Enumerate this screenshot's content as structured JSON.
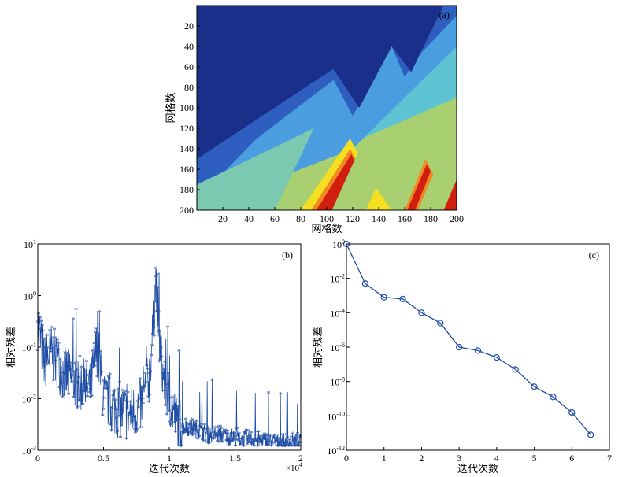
{
  "chart_data": [
    {
      "type": "heatmap",
      "panel_label": "(a)",
      "xlabel": "网格数",
      "ylabel": "网格数",
      "xlim": [
        0,
        200
      ],
      "ylim": [
        200,
        0
      ],
      "x_ticks": [
        20,
        40,
        60,
        80,
        100,
        120,
        140,
        160,
        180,
        200
      ],
      "y_ticks": [
        20,
        40,
        60,
        80,
        100,
        120,
        140,
        160,
        180,
        200
      ],
      "colormap": "jet",
      "grid": false,
      "colors": {
        "dark_blue": "#1a2f8a",
        "mid_blue": "#2e5fc0",
        "light_blue": "#4a9ee0",
        "cyan": "#5ec4d4",
        "teal": "#7cc8b0",
        "green": "#a8cf70",
        "yellow": "#f4e020",
        "orange": "#f08a20",
        "red": "#d01e10"
      }
    },
    {
      "type": "scatter",
      "panel_label": "(b)",
      "xlabel": "迭代次数",
      "ylabel": "相对残差",
      "x_multiplier_label": "×10",
      "x_multiplier_exp": "4",
      "xlim": [
        0,
        2
      ],
      "ylim_log10": [
        -3,
        1
      ],
      "y_scale": "log",
      "x_ticks": [
        "0",
        "0.5",
        "1",
        "1.5",
        "2"
      ],
      "y_tick_exponents": [
        "1",
        "0",
        "-1",
        "-2",
        "-3"
      ],
      "y_tick_base": "10",
      "marker": "*",
      "color": "#1f4da6",
      "grid": false,
      "x": [
        0,
        0.05,
        0.1,
        0.2,
        0.3,
        0.4,
        0.45,
        0.5,
        0.6,
        0.7,
        0.8,
        0.85,
        0.88,
        0.9,
        0.92,
        0.95,
        1.0,
        1.05,
        1.1,
        1.2,
        1.3,
        1.4,
        1.5,
        1.6,
        1.7,
        1.8,
        1.9,
        2.0
      ],
      "y": [
        0.3,
        0.05,
        0.08,
        0.03,
        0.02,
        0.015,
        0.1,
        0.01,
        0.006,
        0.005,
        0.008,
        0.03,
        0.3,
        2.3,
        0.2,
        0.03,
        0.01,
        0.004,
        0.003,
        0.0025,
        0.002,
        0.002,
        0.0018,
        0.0016,
        0.0015,
        0.0014,
        0.0014,
        0.0014
      ]
    },
    {
      "type": "line",
      "panel_label": "(c)",
      "xlabel": "迭代次数",
      "ylabel": "相对残差",
      "xlim": [
        0,
        7
      ],
      "ylim_log10": [
        -12,
        0
      ],
      "y_scale": "log",
      "x_ticks": [
        "0",
        "1",
        "2",
        "3",
        "4",
        "5",
        "6",
        "7"
      ],
      "y_tick_exponents": [
        "0",
        "-2",
        "-4",
        "-6",
        "-8",
        "-10",
        "-12"
      ],
      "y_tick_base": "10",
      "marker": "o",
      "color": "#1f4da6",
      "grid": false,
      "x": [
        0,
        0.5,
        1,
        1.5,
        2,
        2.5,
        3,
        3.5,
        4,
        4.5,
        5,
        5.5,
        6,
        6.5
      ],
      "y_log10": [
        0,
        -2.3,
        -3.1,
        -3.2,
        -4.0,
        -4.6,
        -6.0,
        -6.2,
        -6.6,
        -7.3,
        -8.3,
        -8.9,
        -9.8,
        -11.1
      ]
    }
  ]
}
